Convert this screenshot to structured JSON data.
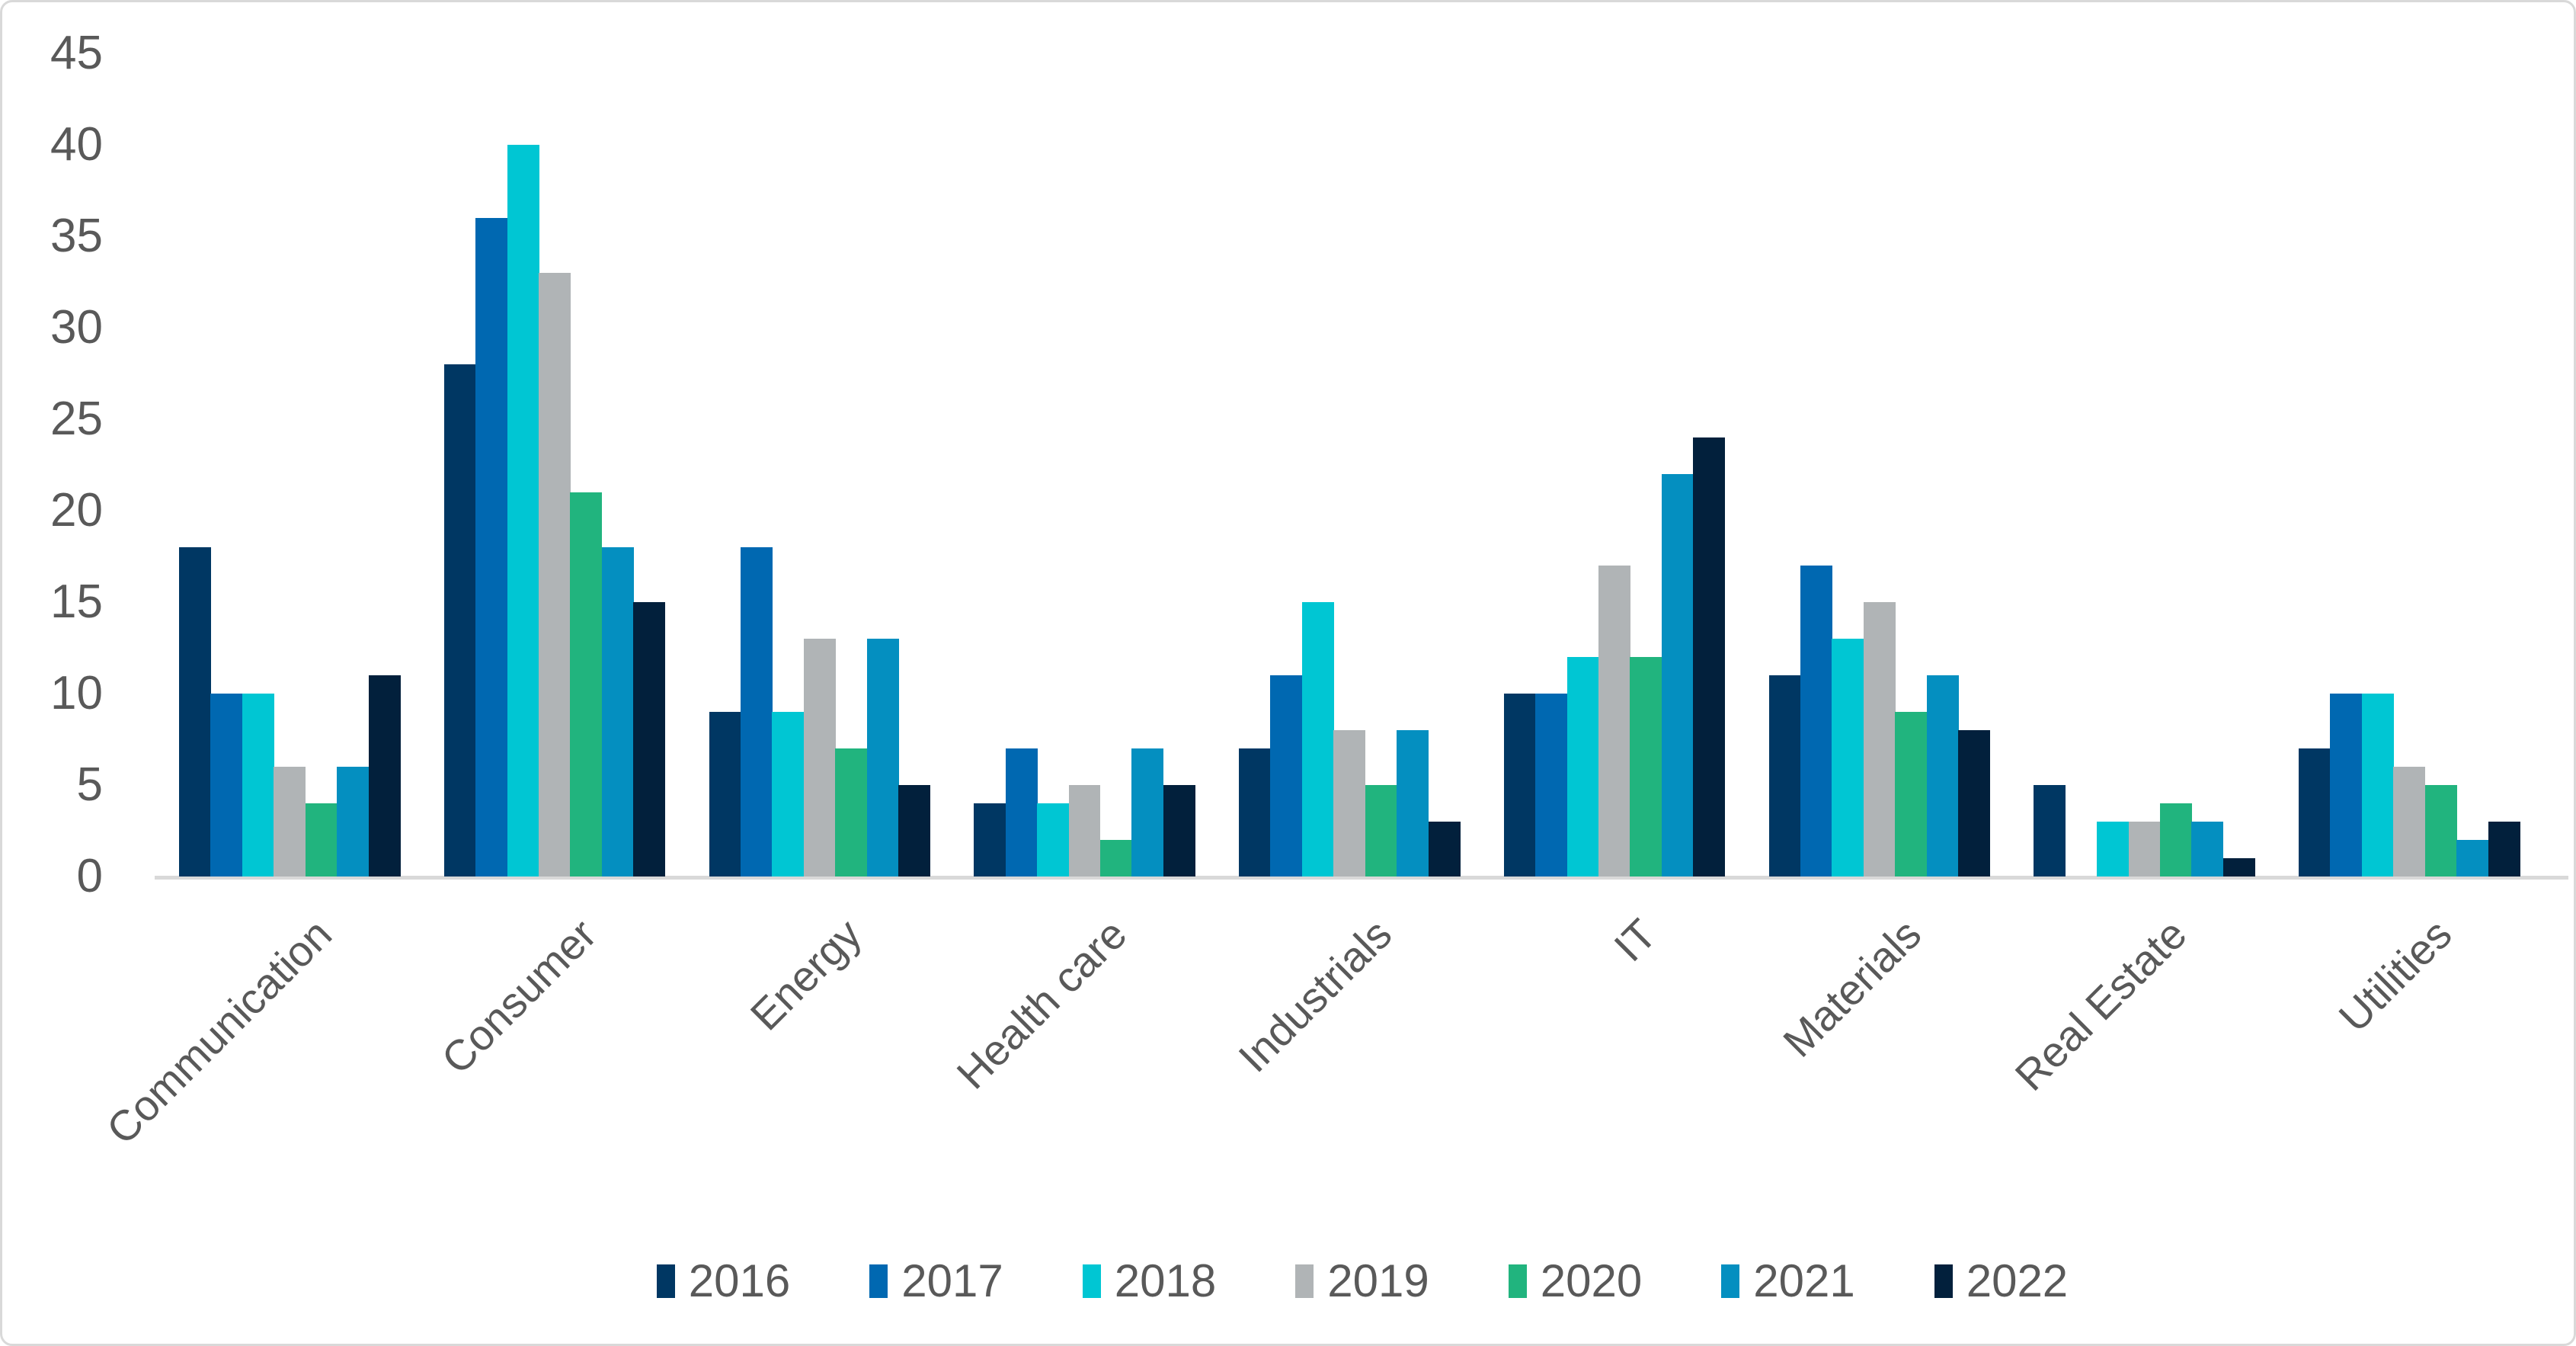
{
  "chart_data": {
    "type": "bar",
    "title": "",
    "xlabel": "",
    "ylabel": "",
    "categories": [
      "Communication",
      "Consumer",
      "Energy",
      "Health care",
      "Industrials",
      "IT",
      "Materials",
      "Real Estate",
      "Utilities"
    ],
    "series": [
      {
        "name": "2016",
        "color": "#003763",
        "values": [
          18,
          28,
          9,
          4,
          7,
          10,
          11,
          5,
          7
        ]
      },
      {
        "name": "2017",
        "color": "#0068b1",
        "values": [
          10,
          36,
          18,
          7,
          11,
          10,
          17,
          0,
          10
        ]
      },
      {
        "name": "2018",
        "color": "#00c6d3",
        "values": [
          10,
          40,
          9,
          4,
          15,
          12,
          13,
          3,
          10
        ]
      },
      {
        "name": "2019",
        "color": "#b0b4b6",
        "values": [
          6,
          33,
          13,
          5,
          8,
          17,
          15,
          3,
          6
        ]
      },
      {
        "name": "2020",
        "color": "#21b47e",
        "values": [
          4,
          21,
          7,
          2,
          5,
          12,
          9,
          4,
          5
        ]
      },
      {
        "name": "2021",
        "color": "#048fc0",
        "values": [
          6,
          18,
          13,
          7,
          8,
          22,
          11,
          3,
          2
        ]
      },
      {
        "name": "2022",
        "color": "#02203c",
        "values": [
          11,
          15,
          5,
          5,
          3,
          24,
          8,
          1,
          3
        ]
      }
    ],
    "ylim": [
      0,
      45
    ],
    "yticks": [
      0,
      5,
      10,
      15,
      20,
      25,
      30,
      35,
      40,
      45
    ],
    "grid": false,
    "legend_position": "bottom",
    "axis_line_color": "#d9d9d9",
    "text_color": "#595959",
    "background_color": "#ffffff"
  }
}
